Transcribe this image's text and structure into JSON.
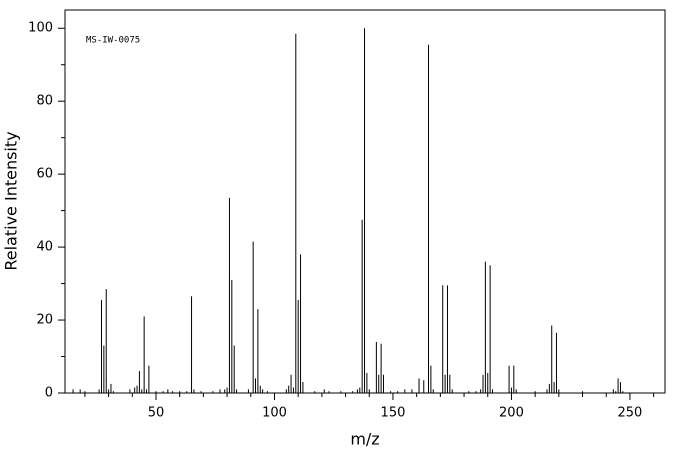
{
  "chart_data": {
    "type": "stem",
    "annotation": "MS-IW-0075",
    "x_label": "m/z",
    "y_label": "Relative Intensity",
    "color": "#000000",
    "x": [
      15,
      18,
      20,
      26,
      27,
      28,
      29,
      30,
      31,
      32,
      39,
      41,
      42,
      43,
      44,
      45,
      46,
      47,
      50,
      53,
      55,
      57,
      60,
      63,
      65,
      66,
      69,
      74,
      77,
      79,
      80,
      81,
      82,
      83,
      84,
      89,
      91,
      92,
      93,
      94,
      95,
      97,
      105,
      106,
      107,
      108,
      109,
      110,
      111,
      112,
      117,
      121,
      123,
      128,
      133,
      135,
      136,
      137,
      138,
      139,
      140,
      143,
      144,
      145,
      146,
      149,
      152,
      155,
      158,
      161,
      163,
      165,
      166,
      167,
      171,
      172,
      173,
      174,
      175,
      182,
      185,
      187,
      188,
      189,
      190,
      191,
      192,
      199,
      200,
      201,
      202,
      210,
      215,
      216,
      217,
      218,
      219,
      220,
      230,
      243,
      244,
      245,
      246,
      247
    ],
    "values": [
      1,
      1,
      0.5,
      1,
      25.5,
      13,
      28.5,
      1,
      2.5,
      0.5,
      1,
      1.5,
      2,
      6,
      1,
      21,
      1,
      7.5,
      0.5,
      0.5,
      1,
      0.5,
      0.5,
      0.5,
      26.5,
      1,
      0.5,
      0.5,
      1,
      1,
      1.5,
      53.5,
      31,
      13,
      1,
      1,
      41.5,
      4,
      23,
      2,
      1,
      0.5,
      1,
      2,
      5,
      1.5,
      98.5,
      25.5,
      38,
      3,
      0.5,
      1,
      0.5,
      0.5,
      0.5,
      1,
      1.5,
      47.5,
      100,
      5.5,
      1,
      14,
      5,
      13.5,
      5,
      0.5,
      0.5,
      1,
      1,
      4,
      3.5,
      95.5,
      7.5,
      1,
      29.5,
      5,
      29.5,
      5,
      1,
      0.5,
      0.5,
      1,
      5,
      36,
      5.5,
      35,
      1,
      7.5,
      1.5,
      7.5,
      1,
      0.5,
      1,
      2.5,
      18.5,
      3,
      16.5,
      1,
      0.5,
      1,
      0.5,
      4,
      3,
      0.5
    ],
    "xlim": [
      11.6,
      264.8
    ],
    "ylim": [
      0,
      105
    ],
    "xticks": [
      50,
      100,
      150,
      200,
      250
    ],
    "xticks_minor": [
      20,
      30,
      40,
      60,
      70,
      80,
      90,
      110,
      120,
      130,
      140,
      160,
      170,
      180,
      190,
      210,
      220,
      230,
      240,
      260
    ],
    "yticks": [
      0,
      20,
      40,
      60,
      80,
      100
    ],
    "yticks_minor": [
      10,
      30,
      50,
      70,
      90
    ]
  }
}
